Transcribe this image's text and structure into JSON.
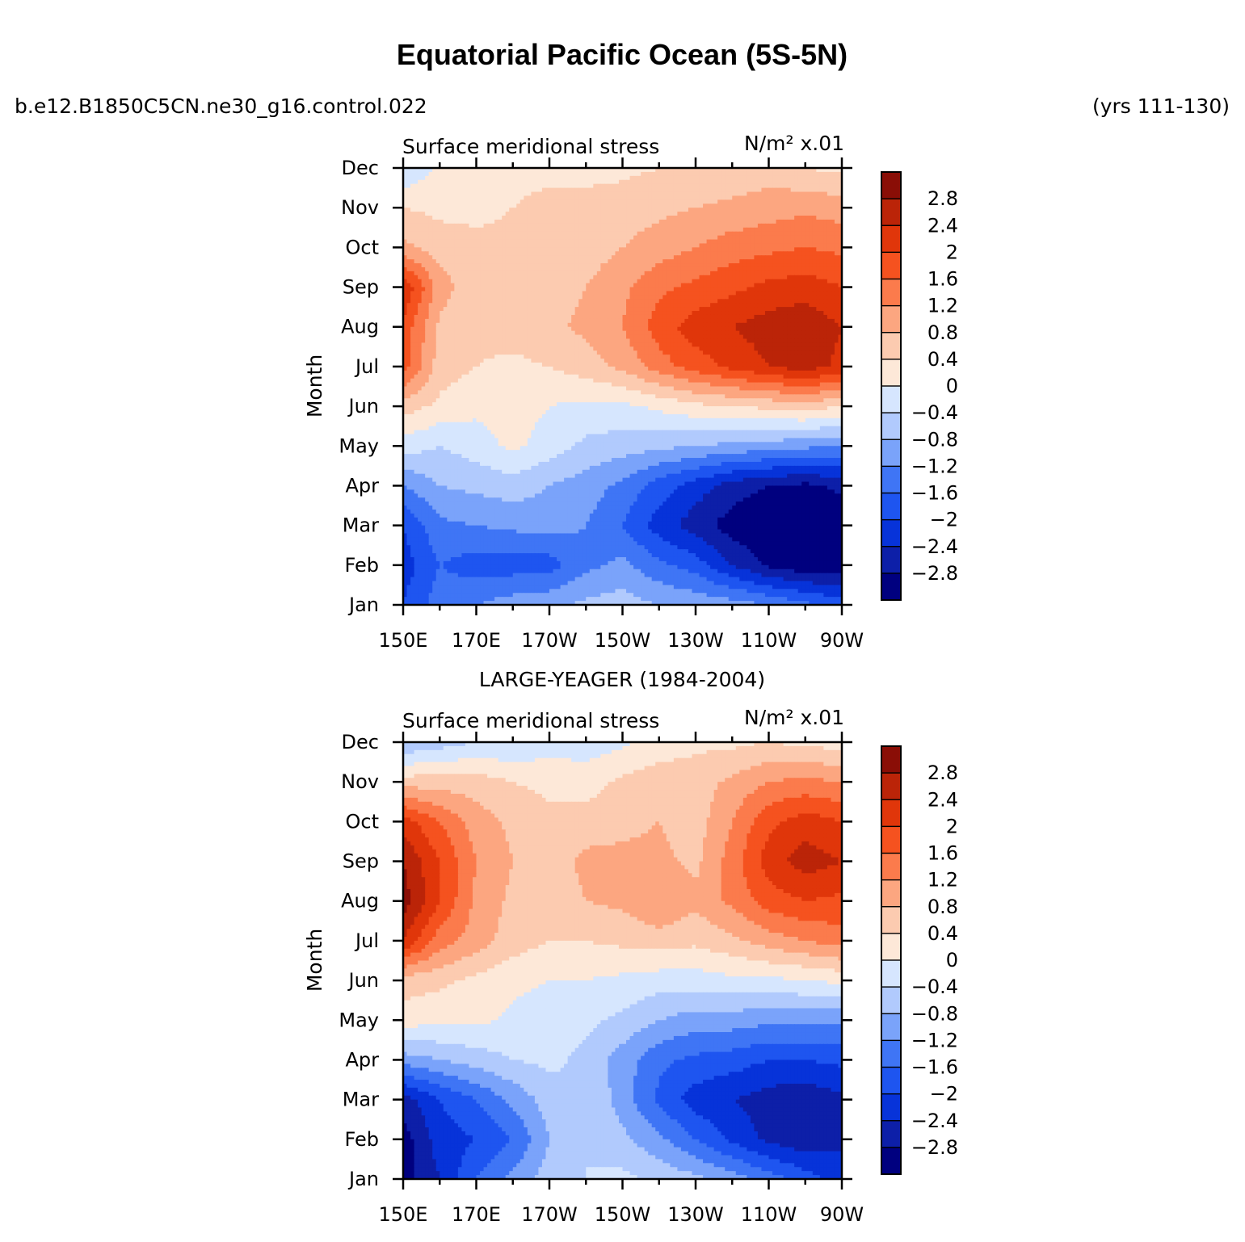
{
  "figure": {
    "title": "Equatorial Pacific Ocean (5S-5N)",
    "case_name": "b.e12.B1850C5CN.ne30_g16.control.022",
    "years": "(yrs 111-130)"
  },
  "colors": {
    "levels": [
      "#00007f",
      "#0d1fa8",
      "#0733d9",
      "#1e55f0",
      "#3f75f5",
      "#7aa3fa",
      "#b1cafd",
      "#d6e6fe",
      "#fde8d8",
      "#fccbb0",
      "#fca680",
      "#fb7b4c",
      "#f5521f",
      "#e0360a",
      "#bb2408",
      "#8a0e06"
    ]
  },
  "chart_data": [
    {
      "type": "heatmap",
      "panel_label": "",
      "title": "Surface meridional stress",
      "units": "N/m² x.01",
      "xlabel": "",
      "ylabel": "Month",
      "x_ticks": [
        "150E",
        "170E",
        "170W",
        "150W",
        "130W",
        "110W",
        "90W"
      ],
      "y_ticks": [
        "Jan",
        "Feb",
        "Mar",
        "Apr",
        "May",
        "Jun",
        "Jul",
        "Aug",
        "Sep",
        "Oct",
        "Nov",
        "Dec"
      ],
      "x_lon_range": [
        150,
        270
      ],
      "colorbar_labels": [
        "2.8",
        "2.4",
        "2",
        "1.6",
        "1.2",
        "0.8",
        "0.4",
        "0",
        "−0.4",
        "−0.8",
        "−1.2",
        "−1.6",
        "−2",
        "−2.4",
        "−2.8"
      ],
      "lon": [
        150,
        160,
        170,
        180,
        190,
        200,
        210,
        220,
        230,
        240,
        250,
        260,
        270
      ],
      "months": [
        "Jan",
        "Feb",
        "Mar",
        "Apr",
        "May",
        "Jun",
        "Jul",
        "Aug",
        "Sep",
        "Oct",
        "Nov",
        "Dec"
      ],
      "values": [
        [
          -2.0,
          -1.4,
          -1.2,
          -1.0,
          -0.9,
          -0.7,
          -0.6,
          -0.8,
          -0.9,
          -1.0,
          -1.2,
          -1.5,
          -1.8
        ],
        [
          -2.2,
          -1.6,
          -1.8,
          -1.8,
          -1.8,
          -1.3,
          -1.1,
          -1.5,
          -1.8,
          -2.4,
          -2.9,
          -3.1,
          -3.0
        ],
        [
          -2.0,
          -1.3,
          -1.2,
          -1.1,
          -1.0,
          -1.2,
          -1.6,
          -2.2,
          -2.6,
          -3.0,
          -3.2,
          -3.3,
          -3.1
        ],
        [
          -1.2,
          -0.8,
          -0.7,
          -0.6,
          -0.8,
          -1.0,
          -1.3,
          -1.8,
          -2.2,
          -2.6,
          -2.8,
          -2.9,
          -2.7
        ],
        [
          -0.2,
          -0.4,
          -0.2,
          0.1,
          -0.2,
          -0.5,
          -0.6,
          -0.7,
          -0.8,
          -0.9,
          -1.0,
          -1.1,
          -1.2
        ],
        [
          0.6,
          0.3,
          0.1,
          0.2,
          0.0,
          -0.1,
          -0.1,
          0.1,
          0.3,
          0.4,
          0.5,
          0.6,
          0.4
        ],
        [
          1.8,
          0.6,
          0.4,
          0.3,
          0.4,
          0.6,
          0.9,
          1.4,
          1.8,
          2.1,
          2.4,
          2.6,
          2.3
        ],
        [
          1.9,
          0.7,
          0.5,
          0.6,
          0.7,
          0.9,
          1.2,
          1.8,
          2.2,
          2.4,
          2.6,
          2.7,
          2.4
        ],
        [
          2.4,
          1.0,
          0.5,
          0.5,
          0.6,
          0.8,
          1.1,
          1.5,
          1.7,
          1.9,
          2.1,
          2.2,
          2.0
        ],
        [
          0.9,
          0.6,
          0.5,
          0.5,
          0.5,
          0.6,
          0.8,
          1.0,
          1.2,
          1.4,
          1.5,
          1.6,
          1.5
        ],
        [
          0.4,
          0.3,
          0.3,
          0.4,
          0.5,
          0.5,
          0.6,
          0.7,
          0.8,
          0.9,
          1.0,
          1.1,
          1.0
        ],
        [
          -0.4,
          0.1,
          0.2,
          0.3,
          0.3,
          0.3,
          0.3,
          0.4,
          0.4,
          0.5,
          0.6,
          0.4,
          0.3
        ]
      ]
    },
    {
      "type": "heatmap",
      "panel_label": "LARGE-YEAGER (1984-2004)",
      "title": "Surface meridional stress",
      "units": "N/m² x.01",
      "xlabel": "",
      "ylabel": "Month",
      "x_ticks": [
        "150E",
        "170E",
        "170W",
        "150W",
        "130W",
        "110W",
        "90W"
      ],
      "y_ticks": [
        "Jan",
        "Feb",
        "Mar",
        "Apr",
        "May",
        "Jun",
        "Jul",
        "Aug",
        "Sep",
        "Oct",
        "Nov",
        "Dec"
      ],
      "x_lon_range": [
        150,
        270
      ],
      "colorbar_labels": [
        "2.8",
        "2.4",
        "2",
        "1.6",
        "1.2",
        "0.8",
        "0.4",
        "0",
        "−0.4",
        "−0.8",
        "−1.2",
        "−1.6",
        "−2",
        "−2.4",
        "−2.8"
      ],
      "lon": [
        150,
        160,
        170,
        180,
        190,
        200,
        210,
        220,
        230,
        240,
        250,
        260,
        270
      ],
      "months": [
        "Jan",
        "Feb",
        "Mar",
        "Apr",
        "May",
        "Jun",
        "Jul",
        "Aug",
        "Sep",
        "Oct",
        "Nov",
        "Dec"
      ],
      "values": [
        [
          -3.0,
          -2.4,
          -1.6,
          -1.1,
          -0.6,
          -0.4,
          -0.3,
          -0.5,
          -0.7,
          -1.0,
          -1.4,
          -1.8,
          -2.2
        ],
        [
          -3.0,
          -2.2,
          -2.0,
          -1.6,
          -0.8,
          -0.4,
          -0.7,
          -1.1,
          -1.6,
          -2.1,
          -2.5,
          -2.7,
          -2.5
        ],
        [
          -2.6,
          -2.0,
          -1.6,
          -1.1,
          -0.6,
          -0.4,
          -1.0,
          -1.7,
          -2.2,
          -2.4,
          -2.6,
          -2.7,
          -2.5
        ],
        [
          -1.0,
          -0.8,
          -0.6,
          -0.4,
          -0.3,
          -0.5,
          -1.0,
          -1.5,
          -1.7,
          -1.8,
          -2.0,
          -2.0,
          -1.9
        ],
        [
          0.2,
          0.1,
          0.1,
          -0.1,
          -0.2,
          -0.3,
          -0.5,
          -0.8,
          -1.0,
          -1.0,
          -1.1,
          -1.1,
          -1.1
        ],
        [
          0.6,
          0.5,
          0.3,
          0.1,
          0.0,
          0.0,
          -0.1,
          -0.2,
          -0.2,
          -0.1,
          -0.1,
          0.0,
          0.1
        ],
        [
          2.4,
          1.4,
          1.0,
          0.6,
          0.4,
          0.4,
          0.5,
          0.6,
          0.5,
          0.7,
          1.0,
          1.2,
          1.4
        ],
        [
          3.0,
          2.0,
          1.1,
          0.7,
          0.5,
          0.8,
          0.9,
          1.2,
          0.9,
          1.3,
          1.8,
          2.0,
          1.9
        ],
        [
          2.8,
          2.0,
          1.2,
          0.8,
          0.6,
          0.9,
          0.9,
          0.9,
          0.7,
          1.4,
          2.2,
          2.6,
          2.4
        ],
        [
          2.2,
          1.6,
          1.0,
          0.7,
          0.5,
          0.6,
          0.7,
          0.8,
          0.6,
          1.2,
          1.9,
          2.2,
          2.0
        ],
        [
          0.6,
          0.6,
          0.6,
          0.4,
          0.3,
          0.2,
          0.5,
          0.6,
          0.6,
          0.9,
          1.2,
          1.3,
          1.2
        ],
        [
          -0.8,
          -0.6,
          -0.4,
          -0.4,
          -0.2,
          -0.2,
          -0.1,
          0.2,
          0.3,
          0.3,
          0.4,
          0.3,
          0.2
        ]
      ]
    }
  ]
}
